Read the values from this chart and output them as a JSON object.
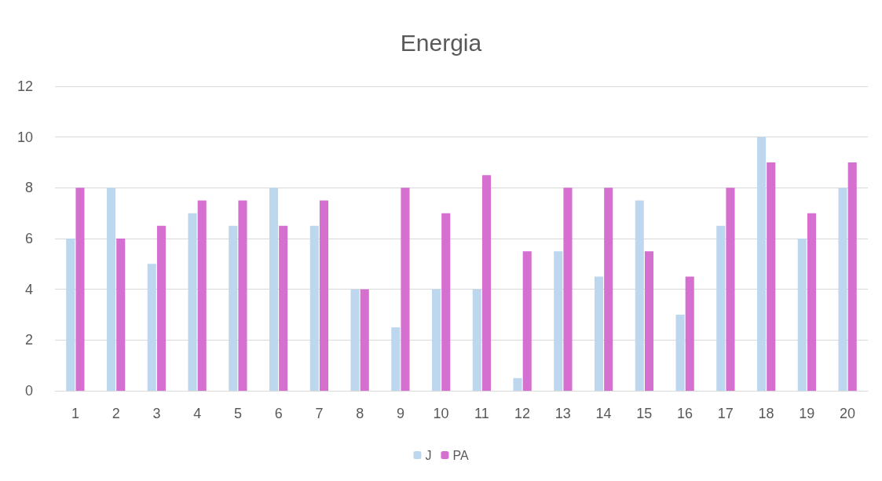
{
  "chart_data": {
    "type": "bar",
    "title": "Energia",
    "categories": [
      "1",
      "2",
      "3",
      "4",
      "5",
      "6",
      "7",
      "8",
      "9",
      "10",
      "11",
      "12",
      "13",
      "14",
      "15",
      "16",
      "17",
      "18",
      "19",
      "20"
    ],
    "series": [
      {
        "name": "J",
        "color": "#bdd7ee",
        "values": [
          6,
          8,
          5,
          7,
          6.5,
          8,
          6.5,
          4,
          2.5,
          4,
          4,
          0.5,
          5.5,
          4.5,
          7.5,
          3,
          6.5,
          10,
          6,
          8
        ]
      },
      {
        "name": "PA",
        "color": "#d56fd0",
        "values": [
          8,
          6,
          6.5,
          7.5,
          7.5,
          6.5,
          7.5,
          4,
          8,
          7,
          8.5,
          5.5,
          8,
          8,
          5.5,
          4.5,
          8,
          9,
          7,
          9
        ]
      }
    ],
    "ylim": [
      0,
      12
    ],
    "yticks": [
      0,
      2,
      4,
      6,
      8,
      10,
      12
    ],
    "grid": "y",
    "legend": "bottom"
  }
}
